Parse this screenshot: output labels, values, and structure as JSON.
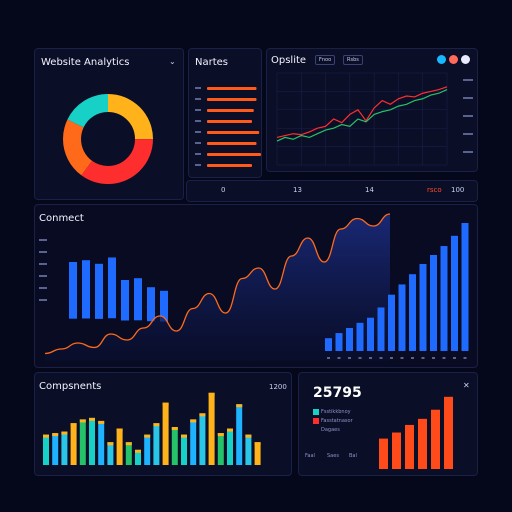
{
  "colors": {
    "background": "#05071a",
    "panel": "#0b0e27",
    "accent_orange": "#ff6a1a",
    "accent_red": "#ff2e2e",
    "accent_teal": "#17d1c6",
    "accent_yellow": "#ffb21a",
    "accent_blue": "#1f6bff",
    "accent_green": "#25c26a"
  },
  "analytics": {
    "title": "Website Analytics"
  },
  "metrics": {
    "title": "Nartes"
  },
  "options": {
    "title": "Opslite",
    "tab1": "Fnoo",
    "tab2": "Rsbs"
  },
  "strip": {
    "label1": "0",
    "label2": "13",
    "label3": "14",
    "label4": "rsco",
    "label5": "100"
  },
  "contract": {
    "title": "Conmect"
  },
  "components": {
    "title": "Compsnents",
    "right_label": "1200"
  },
  "stats": {
    "value": "25795",
    "legend1": "Fsstikkbnoy",
    "legend2": "Fasstatnasor",
    "legend3": "Dagaes",
    "foot1": "Faal",
    "foot2": "Saes",
    "foot3": "Bal"
  },
  "icons": {
    "analytics_collapse": "chevron-down-icon",
    "metrics_collapse": "chevron-down-icon",
    "stats_close": "close-icon",
    "options_color_dots": "color-dot-icon"
  },
  "chart_data": [
    {
      "type": "pie",
      "title": "Website Analytics",
      "values": [
        25,
        35,
        22,
        18
      ],
      "colors": [
        "#ffb21a",
        "#ff2e2e",
        "#ff6a1a",
        "#17d1c6"
      ]
    },
    {
      "type": "bar",
      "title": "Nartes",
      "values": [
        0.55,
        0.55,
        0.52,
        0.5,
        0.58,
        0.55,
        0.6,
        0.5
      ]
    },
    {
      "type": "line",
      "title": "Opslite",
      "series": [
        {
          "color": "#ff2e2e",
          "values": [
            30,
            32,
            34,
            33,
            36,
            40,
            42,
            50,
            46,
            55,
            60,
            48,
            62,
            70,
            66,
            72,
            75,
            74,
            78,
            80,
            82,
            85
          ]
        },
        {
          "color": "#25c26a",
          "values": [
            26,
            30,
            28,
            32,
            30,
            34,
            38,
            40,
            44,
            42,
            50,
            47,
            55,
            58,
            60,
            64,
            66,
            70,
            72,
            76,
            78,
            82
          ]
        }
      ]
    },
    {
      "type": "area",
      "values": [
        5,
        8,
        12,
        9,
        18,
        14,
        22,
        30,
        20,
        35,
        45,
        32,
        55,
        62,
        48,
        70,
        82,
        66,
        88,
        95,
        90,
        98
      ]
    },
    {
      "type": "bar",
      "title": "Conmect",
      "values": [
        70,
        72,
        68,
        75,
        50,
        52,
        42,
        38
      ]
    },
    {
      "type": "bar",
      "values": [
        10,
        14,
        18,
        22,
        26,
        34,
        44,
        52,
        60,
        68,
        75,
        82,
        90,
        100
      ]
    },
    {
      "type": "bar",
      "title": "Compsnents",
      "series": [
        {
          "name": "",
          "values": [
            40,
            42,
            44,
            55,
            60,
            62,
            58,
            30,
            48,
            30,
            20,
            40,
            55,
            82,
            50,
            40,
            60,
            68,
            95,
            42,
            48,
            80,
            40,
            30
          ]
        }
      ]
    },
    {
      "type": "bar",
      "values": [
        40,
        48,
        58,
        66,
        78,
        95
      ]
    }
  ]
}
